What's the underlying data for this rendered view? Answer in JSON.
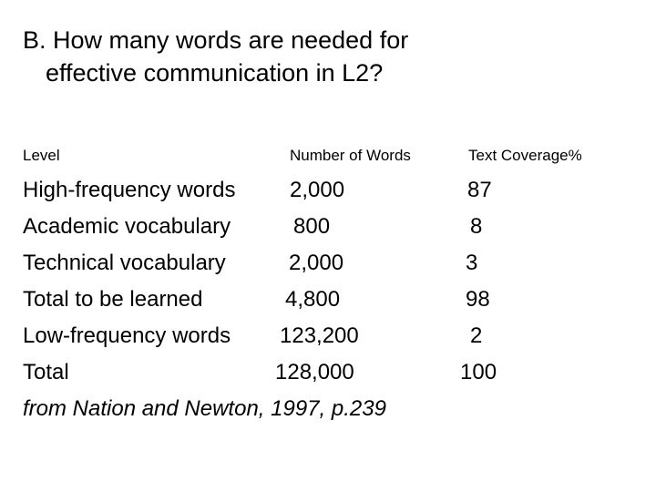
{
  "title": {
    "line1": "B. How many words are needed for",
    "line2": "effective communication in L2?"
  },
  "table": {
    "headers": {
      "level": "Level",
      "number": "Number of Words",
      "coverage": "Text Coverage%"
    },
    "rows": [
      {
        "level": "High-frequency words",
        "number": "2,000",
        "coverage": "87"
      },
      {
        "level": "Academic vocabulary",
        "number": "800",
        "coverage": "8"
      },
      {
        "level": "Technical vocabulary",
        "number": "2,000",
        "coverage": "3"
      },
      {
        "level": "Total to be learned",
        "number": "4,800",
        "coverage": "98"
      },
      {
        "level": "Low-frequency words",
        "number": "123,200",
        "coverage": "2"
      },
      {
        "level": "Total",
        "number": "128,000",
        "coverage": "100"
      }
    ]
  },
  "source": "from Nation and Newton, 1997, p.239"
}
